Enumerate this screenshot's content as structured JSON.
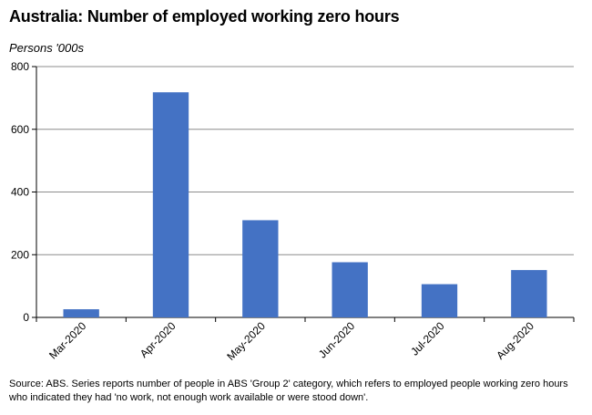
{
  "chart_data": {
    "type": "bar",
    "title": "Australia: Number of employed working zero hours",
    "ylabel": "Persons '000s",
    "xlabel": "",
    "categories": [
      "Mar-2020",
      "Apr-2020",
      "May-2020",
      "Jun-2020",
      "Jul-2020",
      "Aug-2020"
    ],
    "values": [
      26,
      718,
      310,
      176,
      106,
      151
    ],
    "ylim": [
      0,
      800
    ],
    "yticks": [
      0,
      200,
      400,
      600,
      800
    ],
    "grid": true,
    "legend": "none",
    "bar_color": "#4472C4"
  },
  "source": {
    "line1": "Source: ABS.  Series reports number of people in ABS 'Group 2' category, which  refers to employed people working zero hours",
    "line2": "who indicated they had 'no work, not enough work available or were stood down'."
  }
}
